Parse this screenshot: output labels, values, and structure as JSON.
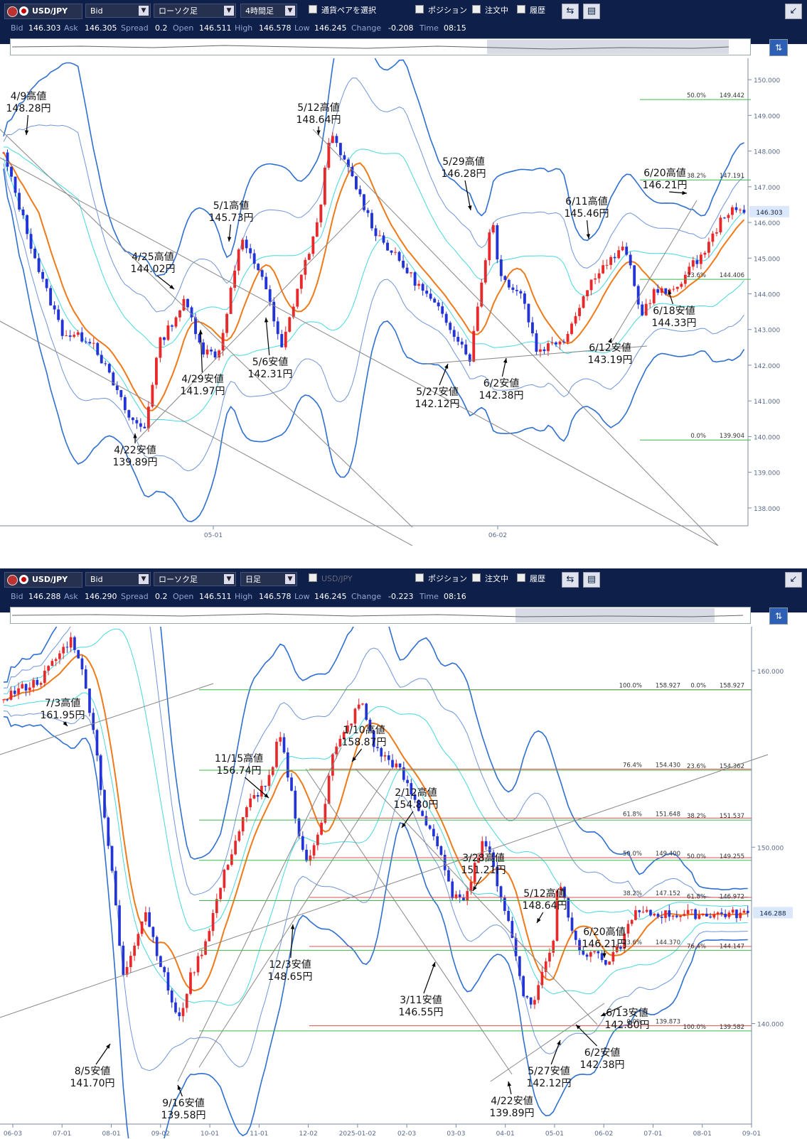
{
  "panels": [
    {
      "pair": "USD/JPY",
      "price_type": "Bid",
      "chart_type": "ローソク足",
      "timeframe": "4時間足",
      "extra": "通貨ペアを選択",
      "checks": [
        "ポジション",
        "注文中",
        "履歴"
      ],
      "quote": {
        "Bid": "146.303",
        "Ask": "146.305",
        "Spread": "0.2",
        "Open": "146.511",
        "High": "146.578",
        "Low": "146.245",
        "Change": "-0.208",
        "Time": "08:15"
      },
      "current": "146.303"
    },
    {
      "pair": "USD/JPY",
      "price_type": "Bid",
      "chart_type": "ローソク足",
      "timeframe": "日足",
      "extra": "USD/JPY",
      "checks": [
        "ポジション",
        "注文中",
        "履歴"
      ],
      "quote": {
        "Bid": "146.288",
        "Ask": "146.290",
        "Spread": "0.2",
        "Open": "146.511",
        "High": "146.578",
        "Low": "146.245",
        "Change": "-0.223",
        "Time": "08:16"
      },
      "current": "146.288"
    }
  ],
  "chart_data": [
    {
      "type": "candlestick",
      "title": "USD/JPY 4時間足",
      "ylim": [
        137.5,
        150.6
      ],
      "yticks": [
        "138.000",
        "139.000",
        "140.000",
        "141.000",
        "142.000",
        "143.000",
        "144.000",
        "145.000",
        "146.000",
        "147.000",
        "148.000",
        "149.000",
        "150.000"
      ],
      "xticks": [
        "05-01",
        "06-02"
      ],
      "close_path": [
        [
          0,
          147.9
        ],
        [
          0.05,
          144.5
        ],
        [
          0.08,
          142.9
        ],
        [
          0.12,
          142.7
        ],
        [
          0.17,
          140.5
        ],
        [
          0.19,
          140.2
        ],
        [
          0.21,
          142.6
        ],
        [
          0.245,
          143.8
        ],
        [
          0.27,
          142.4
        ],
        [
          0.29,
          142.3
        ],
        [
          0.32,
          145.5
        ],
        [
          0.35,
          144.5
        ],
        [
          0.375,
          142.4
        ],
        [
          0.4,
          144.4
        ],
        [
          0.425,
          146.0
        ],
        [
          0.44,
          148.5
        ],
        [
          0.47,
          147.3
        ],
        [
          0.5,
          145.8
        ],
        [
          0.55,
          144.5
        ],
        [
          0.6,
          143.2
        ],
        [
          0.63,
          142.2
        ],
        [
          0.645,
          144.3
        ],
        [
          0.66,
          146.2
        ],
        [
          0.67,
          144.5
        ],
        [
          0.7,
          144.0
        ],
        [
          0.72,
          142.4
        ],
        [
          0.76,
          142.8
        ],
        [
          0.775,
          143.6
        ],
        [
          0.8,
          144.6
        ],
        [
          0.84,
          145.3
        ],
        [
          0.86,
          143.4
        ],
        [
          0.88,
          144.1
        ],
        [
          0.9,
          144.0
        ],
        [
          0.95,
          145.3
        ],
        [
          0.975,
          146.3
        ]
      ],
      "horizontal_levels": [
        {
          "pct": "50.0%",
          "value": "149.442"
        },
        {
          "pct": "38.2%",
          "value": "147.191"
        },
        {
          "pct": "23.6%",
          "value": "144.406"
        },
        {
          "pct": "0.0%",
          "value": "139.904"
        }
      ],
      "annotations": [
        {
          "date": "4/9高値",
          "price": "148.28円"
        },
        {
          "date": "4/22安値",
          "price": "139.89円"
        },
        {
          "date": "4/25高値",
          "price": "144.02円"
        },
        {
          "date": "4/29安値",
          "price": "141.97円"
        },
        {
          "date": "5/1高値",
          "price": "145.73円"
        },
        {
          "date": "5/6安値",
          "price": "142.31円"
        },
        {
          "date": "5/12高値",
          "price": "148.64円"
        },
        {
          "date": "5/27安値",
          "price": "142.12円"
        },
        {
          "date": "5/29高値",
          "price": "146.28円"
        },
        {
          "date": "6/2安値",
          "price": "142.38円"
        },
        {
          "date": "6/11高値",
          "price": "145.46円"
        },
        {
          "date": "6/12安値",
          "price": "143.19円"
        },
        {
          "date": "6/18安値",
          "price": "144.33円"
        },
        {
          "date": "6/20高値",
          "price": "146.21円"
        }
      ]
    },
    {
      "type": "candlestick",
      "title": "USD/JPY 日足",
      "ylim": [
        134.3,
        162.5
      ],
      "yticks": [
        "140.000",
        "150.000",
        "160.000"
      ],
      "xticks": [
        "06-03",
        "07-01",
        "08-01",
        "09-02",
        "10-01",
        "11-01",
        "12-02",
        "2025-01-02",
        "02-03",
        "03-03",
        "04-01",
        "05-01",
        "06-02",
        "07-01",
        "08-01",
        "09-01"
      ],
      "close_path": [
        [
          0,
          158.5
        ],
        [
          0.05,
          159.5
        ],
        [
          0.09,
          161.8
        ],
        [
          0.1,
          161.0
        ],
        [
          0.12,
          157.0
        ],
        [
          0.15,
          147.0
        ],
        [
          0.16,
          142.5
        ],
        [
          0.19,
          146.5
        ],
        [
          0.21,
          143.5
        ],
        [
          0.235,
          140.0
        ],
        [
          0.25,
          142.5
        ],
        [
          0.27,
          144.5
        ],
        [
          0.3,
          149.0
        ],
        [
          0.33,
          152.5
        ],
        [
          0.36,
          154.0
        ],
        [
          0.37,
          156.5
        ],
        [
          0.385,
          153.5
        ],
        [
          0.4,
          150.0
        ],
        [
          0.41,
          149.0
        ],
        [
          0.43,
          152.0
        ],
        [
          0.44,
          155.0
        ],
        [
          0.465,
          157.0
        ],
        [
          0.48,
          158.3
        ],
        [
          0.5,
          155.5
        ],
        [
          0.53,
          154.5
        ],
        [
          0.56,
          152.0
        ],
        [
          0.58,
          150.5
        ],
        [
          0.6,
          147.5
        ],
        [
          0.615,
          146.8
        ],
        [
          0.63,
          148.5
        ],
        [
          0.645,
          150.6
        ],
        [
          0.66,
          148.5
        ],
        [
          0.68,
          145.5
        ],
        [
          0.7,
          141.5
        ],
        [
          0.71,
          141.0
        ],
        [
          0.725,
          143.0
        ],
        [
          0.74,
          145.0
        ],
        [
          0.745,
          148.5
        ],
        [
          0.76,
          146.0
        ],
        [
          0.78,
          143.5
        ],
        [
          0.79,
          144.3
        ],
        [
          0.8,
          143.8
        ],
        [
          0.815,
          143.5
        ],
        [
          0.83,
          144.5
        ],
        [
          0.845,
          146.2
        ]
      ],
      "horizontal_levels": [
        {
          "pct": "100.0%",
          "value": "158.927"
        },
        {
          "pct": "0.0%",
          "value": "158.927"
        },
        {
          "pct": "76.4%",
          "value": "154.430"
        },
        {
          "pct": "23.6%",
          "value": "154.362"
        },
        {
          "pct": "61.8%",
          "value": "151.648"
        },
        {
          "pct": "38.2%",
          "value": "151.537"
        },
        {
          "pct": "50.0%",
          "value": "149.400"
        },
        {
          "pct": "50.0%",
          "value": "149.255"
        },
        {
          "pct": "38.2%",
          "value": "147.152"
        },
        {
          "pct": "61.8%",
          "value": "146.972"
        },
        {
          "pct": "23.6%",
          "value": "144.370"
        },
        {
          "pct": "76.4%",
          "value": "144.147"
        },
        {
          "pct": "0.0%",
          "value": "139.873"
        },
        {
          "pct": "100.0%",
          "value": "139.582"
        }
      ],
      "annotations": [
        {
          "date": "7/3高値",
          "price": "161.95円"
        },
        {
          "date": "8/5安値",
          "price": "141.70円"
        },
        {
          "date": "9/16安値",
          "price": "139.58円"
        },
        {
          "date": "11/15高値",
          "price": "156.74円"
        },
        {
          "date": "12/3安値",
          "price": "148.65円"
        },
        {
          "date": "1/10高値",
          "price": "158.87円"
        },
        {
          "date": "2/12高値",
          "price": "154.80円"
        },
        {
          "date": "3/11安値",
          "price": "146.55円"
        },
        {
          "date": "3/28高値",
          "price": "151.21円"
        },
        {
          "date": "4/22安値",
          "price": "139.89円"
        },
        {
          "date": "5/12高値",
          "price": "148.64円"
        },
        {
          "date": "5/27安値",
          "price": "142.12円"
        },
        {
          "date": "6/2安値",
          "price": "142.38円"
        },
        {
          "date": "6/13安値",
          "price": "142.80円"
        },
        {
          "date": "6/20高値",
          "price": "146.21円"
        }
      ]
    }
  ]
}
